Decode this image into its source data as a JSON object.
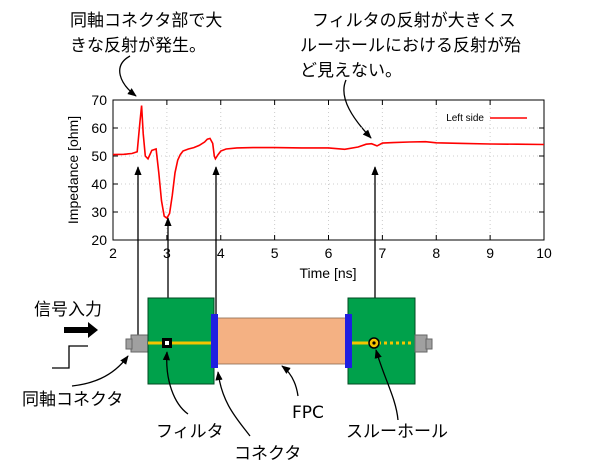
{
  "annotations": {
    "connector_reflection": [
      "同軸コネクタ部で大",
      "きな反射が発生。"
    ],
    "filter_through_hole": [
      "フィルタの反射が大きくス",
      "ルーホールにおける反射が殆",
      "ど見えない。"
    ]
  },
  "labels": {
    "signal_input": "信号入力",
    "coax_connector": "同軸コネクタ",
    "filter": "フィルタ",
    "connector": "コネクタ",
    "fpc": "FPC",
    "through_hole": "スルーホール"
  },
  "colors": {
    "trace": "#ff0000",
    "pcb": "#00a14b",
    "pcb_border": "#004a20",
    "fpc": "#f4b183",
    "connector_bar": "#1f1fe0",
    "signal_line": "#f5c400",
    "coax": "#a0a0a0"
  },
  "chart_data": {
    "type": "line",
    "title": "",
    "xlabel": "Time [ns]",
    "ylabel": "Impedance [ohm]",
    "xlim": [
      2,
      10
    ],
    "ylim": [
      20,
      70
    ],
    "xticks": [
      2,
      3,
      4,
      5,
      6,
      7,
      8,
      9,
      10
    ],
    "yticks": [
      20,
      30,
      40,
      50,
      60,
      70
    ],
    "grid": true,
    "legend_position": "top-right",
    "series": [
      {
        "name": "Left side",
        "color": "#ff0000",
        "x": [
          2.0,
          2.2,
          2.35,
          2.45,
          2.5,
          2.53,
          2.56,
          2.6,
          2.65,
          2.72,
          2.8,
          2.85,
          2.9,
          2.95,
          3.0,
          3.05,
          3.1,
          3.15,
          3.2,
          3.25,
          3.3,
          3.4,
          3.5,
          3.6,
          3.7,
          3.75,
          3.8,
          3.85,
          3.88,
          3.9,
          3.95,
          4.0,
          4.1,
          4.3,
          4.6,
          5.0,
          5.5,
          6.0,
          6.3,
          6.55,
          6.7,
          6.8,
          6.9,
          7.0,
          7.2,
          7.5,
          7.8,
          8.0,
          8.5,
          9.0,
          9.5,
          10.0
        ],
        "y": [
          50.5,
          50.6,
          50.9,
          51.5,
          62.0,
          68.0,
          58.0,
          50.0,
          49.0,
          52.0,
          52.5,
          44.0,
          34.0,
          28.5,
          27.8,
          29.5,
          36.0,
          44.0,
          48.5,
          50.5,
          51.8,
          52.5,
          53.0,
          53.8,
          55.0,
          56.0,
          56.3,
          54.5,
          50.0,
          49.0,
          50.5,
          51.8,
          52.5,
          52.9,
          53.0,
          53.0,
          52.9,
          52.9,
          52.4,
          53.2,
          54.2,
          54.4,
          53.6,
          54.6,
          54.8,
          55.0,
          55.1,
          54.7,
          54.5,
          54.3,
          54.2,
          54.1
        ]
      }
    ]
  }
}
